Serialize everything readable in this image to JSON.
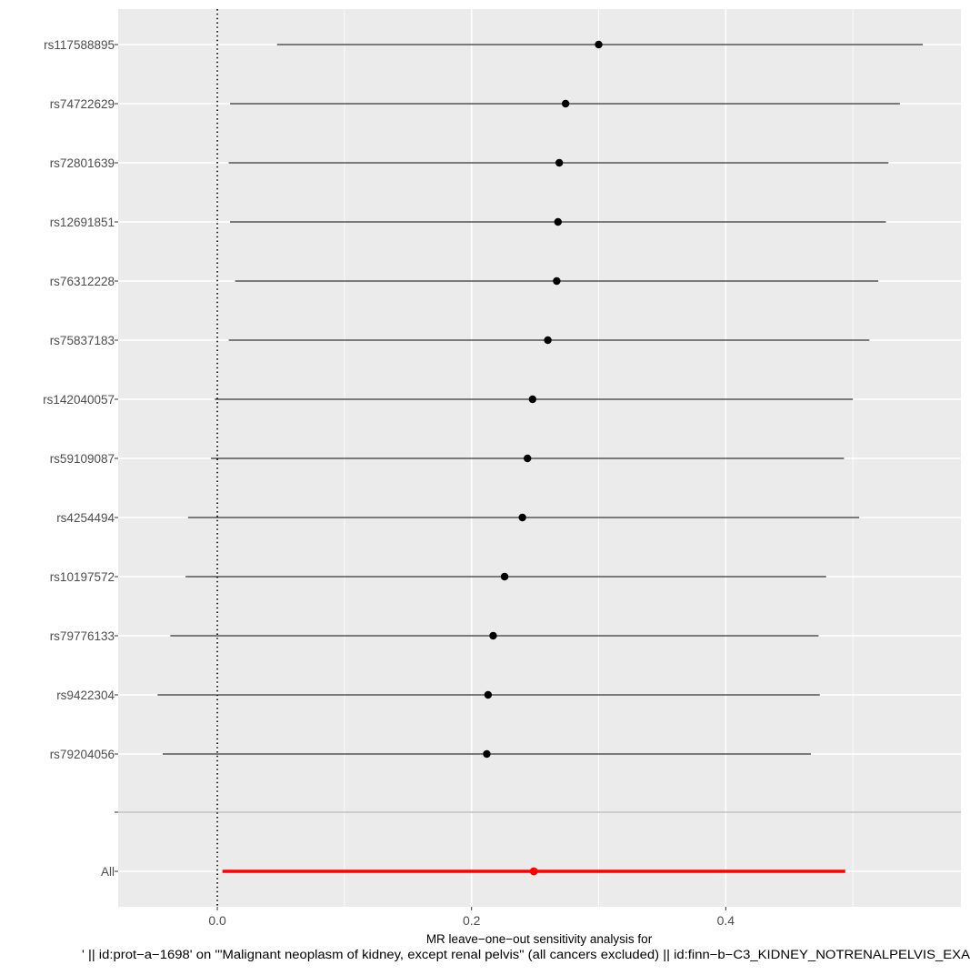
{
  "chart_data": {
    "type": "forest",
    "title": "",
    "xlabel_lines": [
      "MR leave−one−out sensitivity analysis for",
      "' || id:prot−a−1698' on '\"Malignant neoplasm of kidney, except renal pelvis\" (all cancers excluded) || id:finn−b−C3_KIDNEY_NOTRENALPELVIS_EXA"
    ],
    "ylabel": "",
    "xlim": [
      -0.078,
      0.585
    ],
    "x_ticks": [
      0.0,
      0.2,
      0.4
    ],
    "x_tick_labels": [
      "0.0",
      "0.2",
      "0.4"
    ],
    "reference_line_x": 0,
    "grid": true,
    "snps": [
      {
        "label": "rs117588895",
        "b": 0.3,
        "lo": 0.047,
        "hi": 0.555
      },
      {
        "label": "rs74722629",
        "b": 0.274,
        "lo": 0.01,
        "hi": 0.537
      },
      {
        "label": "rs72801639",
        "b": 0.269,
        "lo": 0.009,
        "hi": 0.528
      },
      {
        "label": "rs12691851",
        "b": 0.268,
        "lo": 0.01,
        "hi": 0.526
      },
      {
        "label": "rs76312228",
        "b": 0.267,
        "lo": 0.014,
        "hi": 0.52
      },
      {
        "label": "rs75837183",
        "b": 0.26,
        "lo": 0.009,
        "hi": 0.513
      },
      {
        "label": "rs142040057",
        "b": 0.248,
        "lo": -0.002,
        "hi": 0.5
      },
      {
        "label": "rs59109087",
        "b": 0.244,
        "lo": -0.005,
        "hi": 0.493
      },
      {
        "label": "rs4254494",
        "b": 0.24,
        "lo": -0.023,
        "hi": 0.505
      },
      {
        "label": "rs10197572",
        "b": 0.226,
        "lo": -0.025,
        "hi": 0.479
      },
      {
        "label": "rs79776133",
        "b": 0.217,
        "lo": -0.037,
        "hi": 0.473
      },
      {
        "label": "rs9422304",
        "b": 0.213,
        "lo": -0.047,
        "hi": 0.474
      },
      {
        "label": "rs79204056",
        "b": 0.212,
        "lo": -0.043,
        "hi": 0.467
      }
    ],
    "overall": {
      "label": "All",
      "b": 0.249,
      "lo": 0.004,
      "hi": 0.494
    },
    "colors": {
      "panel_background": "#ebebeb",
      "grid_line": "#ffffff",
      "estimate": "#000000",
      "overall_estimate": "#ff0000",
      "divider": "#bebebe",
      "tick_text": "#4d4d4d",
      "axis_title": "#000000"
    }
  }
}
